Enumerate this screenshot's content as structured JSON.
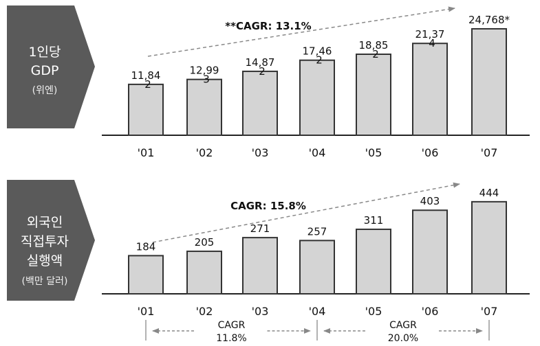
{
  "chart_data": [
    {
      "type": "bar",
      "panel_label": [
        "1인당",
        "GDP",
        "(위엔)"
      ],
      "categories": [
        "'01",
        "'02",
        "'03",
        "'04",
        "'05",
        "'06",
        "'07"
      ],
      "values": [
        11842,
        12993,
        14872,
        17462,
        18852,
        21374,
        24768
      ],
      "value_labels": [
        "11,84",
        "12,99",
        "14,87",
        "17,46",
        "18,85",
        "21,37",
        "24,768*"
      ],
      "value_label_overflow": [
        "2",
        "3",
        "2",
        "2",
        "2",
        "4",
        ""
      ],
      "cagr_label": "**CAGR: 13.1%",
      "ylim": [
        0,
        27000
      ]
    },
    {
      "type": "bar",
      "panel_label": [
        "외국인",
        "직접투자",
        "실행액",
        "(백만 달러)"
      ],
      "categories": [
        "'01",
        "'02",
        "'03",
        "'04",
        "'05",
        "'06",
        "'07"
      ],
      "values": [
        184,
        205,
        271,
        257,
        311,
        403,
        444
      ],
      "value_labels": [
        "184",
        "205",
        "271",
        "257",
        "311",
        "403",
        "444"
      ],
      "cagr_label": "CAGR: 15.8%",
      "ylim": [
        0,
        470
      ],
      "sub_cagr": [
        {
          "label": "CAGR",
          "value": "11.8%",
          "from": 0,
          "to": 3
        },
        {
          "label": "CAGR",
          "value": "20.0%",
          "from": 3,
          "to": 6
        }
      ]
    }
  ],
  "colors": {
    "bar_fill": "#d4d4d4",
    "bar_stroke": "#333333",
    "panel_fill": "#5a5a5a",
    "arrow": "#888888"
  }
}
